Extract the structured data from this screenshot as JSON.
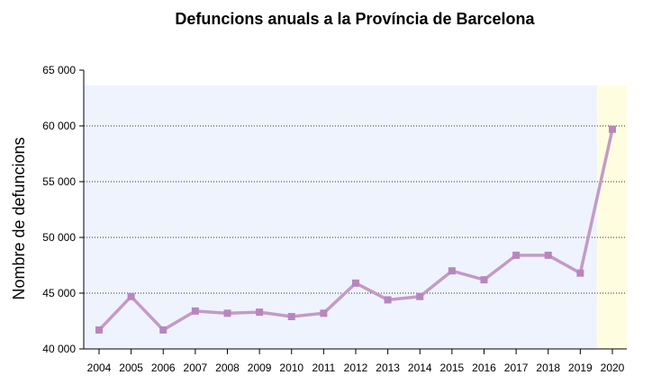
{
  "chart_data": {
    "type": "line",
    "title": "Defuncions anuals a la Província de Barcelona",
    "xlabel": "",
    "ylabel": "Nombre de defuncions",
    "ylim": [
      40000,
      65000
    ],
    "yticks": [
      40000,
      45000,
      50000,
      55000,
      60000,
      65000
    ],
    "ytick_labels": [
      "40 000",
      "45 000",
      "50 000",
      "55 000",
      "60 000",
      "65 000"
    ],
    "grid": "horizontal dotted",
    "categories": [
      "2004",
      "2005",
      "2006",
      "2007",
      "2008",
      "2009",
      "2010",
      "2011",
      "2012",
      "2013",
      "2014",
      "2015",
      "2016",
      "2017",
      "2018",
      "2019",
      "2020"
    ],
    "series": [
      {
        "name": "Defuncions",
        "color": "#c39bc6",
        "marker_color": "#b886be",
        "values": [
          41700,
          44700,
          41700,
          43400,
          43200,
          43300,
          42900,
          43200,
          45900,
          44400,
          44700,
          47000,
          46200,
          48400,
          48400,
          46800,
          59700
        ]
      }
    ],
    "highlight": {
      "category": "2020",
      "color": "#fffde0"
    },
    "background_color": "#eff3fd"
  }
}
